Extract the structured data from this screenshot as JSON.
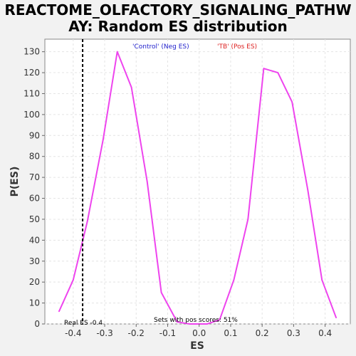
{
  "chart_data": {
    "type": "line",
    "title_lines": [
      "REACTOME_OLFACTORY_SIGNALING_PATHW",
      "AY: Random ES distribution"
    ],
    "xlabel": "ES",
    "ylabel": "P(ES)",
    "xlim": [
      -0.49,
      0.48
    ],
    "ylim": [
      0,
      136
    ],
    "x_ticks": [
      -0.4,
      -0.3,
      -0.2,
      -0.1,
      0.0,
      0.1,
      0.2,
      0.3,
      0.4
    ],
    "x_tick_labels": [
      "-0.4",
      "-0.3",
      "-0.2",
      "-0.1",
      "0.0",
      "0.1",
      "0.2",
      "0.3",
      "0.4"
    ],
    "y_ticks": [
      0,
      10,
      20,
      30,
      40,
      50,
      60,
      70,
      80,
      90,
      100,
      110,
      120,
      130
    ],
    "y_tick_labels": [
      "0",
      "10",
      "20",
      "30",
      "40",
      "50",
      "60",
      "70",
      "80",
      "90",
      "100",
      "110",
      "120",
      "130"
    ],
    "grid": true,
    "series": [
      {
        "color": "#ee44ee",
        "x": [
          -0.445,
          -0.4,
          -0.355,
          -0.305,
          -0.26,
          -0.215,
          -0.165,
          -0.12,
          -0.07,
          -0.03,
          0.025,
          0.065,
          0.11,
          0.155,
          0.205,
          0.25,
          0.295,
          0.345,
          0.39,
          0.435
        ],
        "y": [
          6,
          21,
          49,
          88,
          130,
          113,
          68,
          15,
          1,
          0,
          0,
          2,
          21,
          50,
          122,
          120,
          106,
          64,
          21,
          3
        ]
      }
    ],
    "real_es": -0.37,
    "legend": [
      {
        "text": "'Control' (Neg ES)",
        "color": "#2222cc"
      },
      {
        "text": "'TB' (Pos ES)",
        "color": "#dd2222"
      }
    ],
    "annotations": {
      "real_es_label": "Real ES -0.4",
      "pos_scores_label": "Sets with pos scores: 51%"
    }
  }
}
